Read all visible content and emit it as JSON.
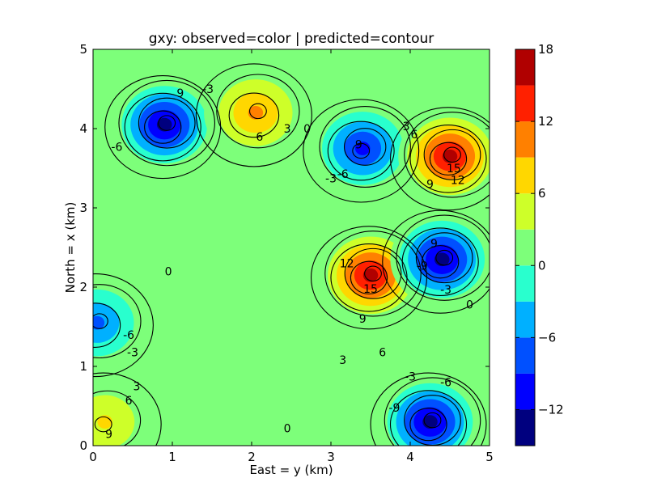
{
  "chart_data": {
    "type": "contour",
    "title": "gxy: observed=color | predicted=contour",
    "xlabel": "East = y (km)",
    "ylabel": "North = x (km)",
    "xlim": [
      0,
      5
    ],
    "ylim": [
      0,
      5
    ],
    "x_ticks": [
      "0",
      "1",
      "2",
      "3",
      "4",
      "5"
    ],
    "y_ticks": [
      "0",
      "1",
      "2",
      "3",
      "4",
      "5"
    ],
    "grid": false,
    "colorbar": {
      "levels": [
        -15,
        -12,
        -9,
        -6,
        -3,
        0,
        3,
        6,
        9,
        12,
        15,
        18
      ],
      "tick_values": [
        -12,
        -6,
        0,
        6,
        12,
        18
      ],
      "tick_labels": [
        "−12",
        "−6",
        "0",
        "6",
        "12",
        "18"
      ],
      "colors": [
        "#00007f",
        "#0000ff",
        "#0050ff",
        "#00b0ff",
        "#29ffce",
        "#7dff7a",
        "#ceff29",
        "#ffd700",
        "#ff8000",
        "#ff2000",
        "#b00000"
      ]
    },
    "features": [
      {
        "label": "low",
        "x": 0.9,
        "y": 4.05,
        "peak": -15
      },
      {
        "label": "high",
        "x": 2.05,
        "y": 4.2,
        "peak": 12
      },
      {
        "label": "low",
        "x": 3.4,
        "y": 3.75,
        "peak": -12
      },
      {
        "label": "high",
        "x": 4.5,
        "y": 3.65,
        "peak": 18
      },
      {
        "label": "high",
        "x": 3.5,
        "y": 2.15,
        "peak": 18
      },
      {
        "label": "low",
        "x": 4.4,
        "y": 2.35,
        "peak": -15
      },
      {
        "label": "low",
        "x": 0.05,
        "y": 1.55,
        "peak": -9
      },
      {
        "label": "low",
        "x": 4.25,
        "y": 0.3,
        "peak": -15
      },
      {
        "label": "high",
        "x": 0.15,
        "y": 0.3,
        "peak": 9
      }
    ],
    "contour_labels": [
      {
        "text": "9",
        "x": 1.1,
        "y": 4.45
      },
      {
        "text": "-3",
        "x": 1.45,
        "y": 4.5
      },
      {
        "text": "-6",
        "x": 0.3,
        "y": 3.77
      },
      {
        "text": "6",
        "x": 2.1,
        "y": 3.9
      },
      {
        "text": "3",
        "x": 2.45,
        "y": 4.0
      },
      {
        "text": "0",
        "x": 2.7,
        "y": 4.0
      },
      {
        "text": "9",
        "x": 3.35,
        "y": 3.8
      },
      {
        "text": "-6",
        "x": 3.15,
        "y": 3.43
      },
      {
        "text": "-3",
        "x": 3.0,
        "y": 3.37
      },
      {
        "text": "3",
        "x": 3.95,
        "y": 4.03
      },
      {
        "text": "6",
        "x": 4.05,
        "y": 3.93
      },
      {
        "text": "9",
        "x": 4.25,
        "y": 3.3
      },
      {
        "text": "15",
        "x": 4.55,
        "y": 3.5
      },
      {
        "text": "12",
        "x": 4.6,
        "y": 3.35
      },
      {
        "text": "0",
        "x": 0.95,
        "y": 2.2
      },
      {
        "text": "12",
        "x": 3.2,
        "y": 2.3
      },
      {
        "text": "15",
        "x": 3.5,
        "y": 1.98
      },
      {
        "text": "9",
        "x": 4.3,
        "y": 2.55
      },
      {
        "text": "-9",
        "x": 4.15,
        "y": 2.27
      },
      {
        "text": "-3",
        "x": 4.45,
        "y": 1.97
      },
      {
        "text": "0",
        "x": 4.75,
        "y": 1.78
      },
      {
        "text": "9",
        "x": 3.4,
        "y": 1.6
      },
      {
        "text": "6",
        "x": 3.65,
        "y": 1.18
      },
      {
        "text": "3",
        "x": 3.15,
        "y": 1.08
      },
      {
        "text": "-6",
        "x": 0.45,
        "y": 1.4
      },
      {
        "text": "-3",
        "x": 0.5,
        "y": 1.18
      },
      {
        "text": "3",
        "x": 0.55,
        "y": 0.75
      },
      {
        "text": "6",
        "x": 0.45,
        "y": 0.57
      },
      {
        "text": "9",
        "x": 0.2,
        "y": 0.15
      },
      {
        "text": "0",
        "x": 2.45,
        "y": 0.22
      },
      {
        "text": "-9",
        "x": 3.8,
        "y": 0.48
      },
      {
        "text": "-3",
        "x": 4.0,
        "y": 0.87
      },
      {
        "text": "-6",
        "x": 4.45,
        "y": 0.8
      }
    ]
  }
}
